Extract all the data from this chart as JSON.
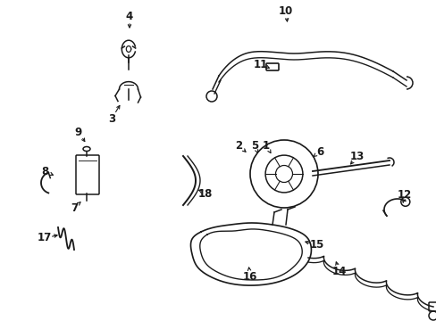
{
  "bg_color": "#ffffff",
  "line_color": "#1a1a1a",
  "label_color": "#000000",
  "label_fontsize": 8.5,
  "fig_width": 4.89,
  "fig_height": 3.6,
  "dpi": 100
}
